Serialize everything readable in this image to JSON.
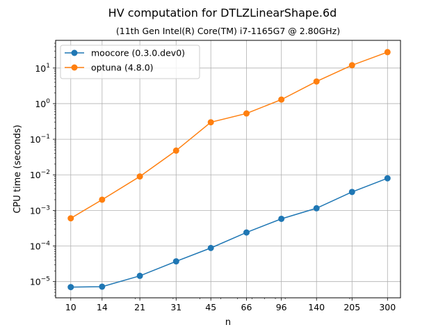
{
  "chart_data": {
    "type": "line",
    "title": "HV computation for DTLZLinearShape.6d",
    "subtitle": "(11th Gen Intel(R) Core(TM) i7-1165G7 @ 2.80GHz)",
    "xlabel": "n",
    "ylabel": "CPU time (seconds)",
    "x_scale": "log",
    "y_scale": "log",
    "x": [
      10,
      14,
      21,
      31,
      45,
      66,
      96,
      140,
      205,
      300
    ],
    "xtick_labels": [
      "10",
      "14",
      "21",
      "31",
      "45",
      "66",
      "96",
      "140",
      "205",
      "300"
    ],
    "xlim": [
      8.5,
      345
    ],
    "ylim": [
      3.5e-06,
      60
    ],
    "yticks": [
      {
        "value": 1e-05,
        "base": "10",
        "exp": "−5"
      },
      {
        "value": 0.0001,
        "base": "10",
        "exp": "−4"
      },
      {
        "value": 0.001,
        "base": "10",
        "exp": "−3"
      },
      {
        "value": 0.01,
        "base": "10",
        "exp": "−2"
      },
      {
        "value": 0.1,
        "base": "10",
        "exp": "−1"
      },
      {
        "value": 1,
        "base": "10",
        "exp": "0"
      },
      {
        "value": 10,
        "base": "10",
        "exp": "1"
      }
    ],
    "grid": true,
    "legend_position": "top-left",
    "series": [
      {
        "name": "moocore (0.3.0.dev0)",
        "color": "#1f77b4",
        "values": [
          7e-06,
          7.2e-06,
          1.45e-05,
          3.7e-05,
          8.8e-05,
          0.00024,
          0.00058,
          0.00115,
          0.0033,
          0.008
        ]
      },
      {
        "name": "optuna (4.8.0)",
        "color": "#ff7f0e",
        "values": [
          0.0006,
          0.002,
          0.009,
          0.048,
          0.3,
          0.53,
          1.3,
          4.2,
          12.0,
          28.0
        ]
      }
    ]
  }
}
